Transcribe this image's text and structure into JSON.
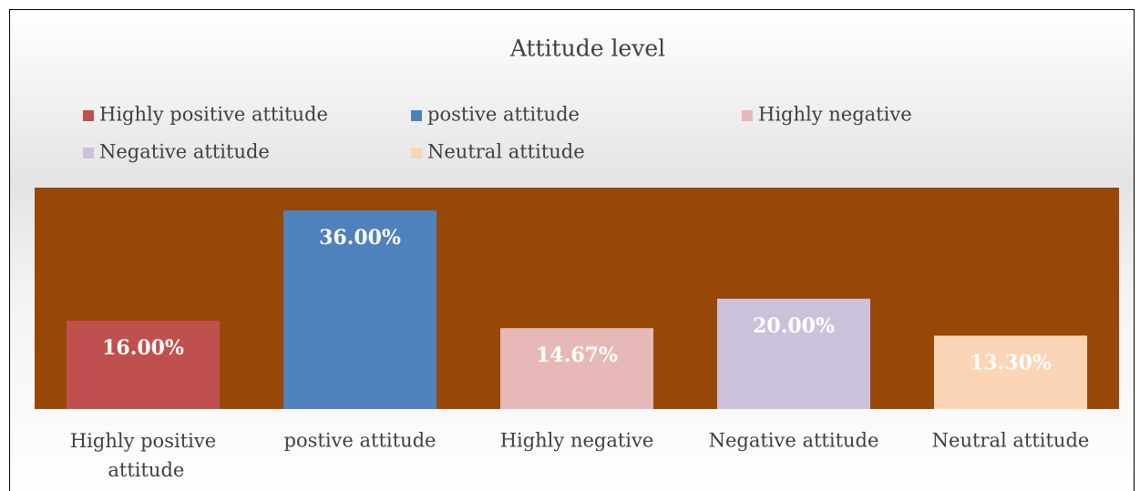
{
  "chart_data": {
    "type": "bar",
    "title": "Attitude level",
    "categories": [
      "Highly positive attitude",
      "postive attitude",
      "Highly negative",
      "Negative attitude",
      "Neutral attitude"
    ],
    "series": [
      {
        "name": "Highly positive attitude",
        "color": "#c0504d"
      },
      {
        "name": "postive attitude",
        "color": "#4f81bd"
      },
      {
        "name": "Highly negative",
        "color": "#e6b9b8"
      },
      {
        "name": "Negative attitude",
        "color": "#ccc1da"
      },
      {
        "name": "Neutral attitude",
        "color": "#fbd5b5"
      }
    ],
    "values": [
      16,
      36,
      14.67,
      20,
      13.3
    ],
    "value_labels": [
      "16.00%",
      "36.00%",
      "14.67%",
      "20.00%",
      "13.30%"
    ],
    "colors": [
      "#c0504d",
      "#4f81bd",
      "#e6b9b8",
      "#ccc1da",
      "#fbd5b5"
    ],
    "plot_background": "#974806",
    "legend": "top"
  }
}
